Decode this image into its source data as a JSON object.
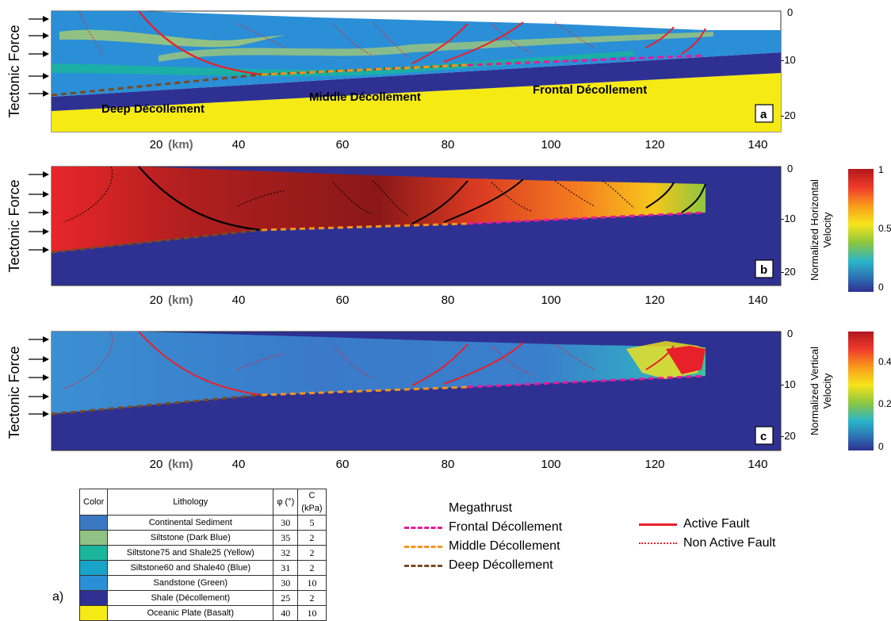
{
  "panels": [
    {
      "id": "a",
      "label": "a",
      "side_label": "Tectonic Force",
      "decollement_labels": [
        "Deep Décollement",
        "Middle Décollement",
        "Frontal Décollement"
      ]
    },
    {
      "id": "b",
      "label": "b",
      "side_label": "Tectonic Force",
      "colorbar_title": "Normalized Horizontal Velocity",
      "colorbar_ticks": [
        "1",
        "0.5",
        "0"
      ]
    },
    {
      "id": "c",
      "label": "c",
      "side_label": "Tectonic Force",
      "colorbar_title": "Normalized Vertical Velocity",
      "colorbar_ticks": [
        "0.4",
        "0.2",
        "0"
      ]
    }
  ],
  "x_axis": {
    "ticks": [
      "20",
      "40",
      "60",
      "80",
      "100",
      "120",
      "140"
    ],
    "unit": "(km)"
  },
  "y_axis": {
    "ticks": [
      "0",
      "-10",
      "-20"
    ]
  },
  "table": {
    "headers": [
      "Color",
      "Lithology",
      "φ (°)",
      "C (kPa)"
    ],
    "rows": [
      {
        "color": "#3a78c2",
        "name": "Continental Sediment",
        "phi": "30",
        "c": "5"
      },
      {
        "color": "#92c184",
        "name": "Siltstone (Dark Blue)",
        "phi": "35",
        "c": "2"
      },
      {
        "color": "#19b59d",
        "name": "Siltstone75 and Shale25 (Yellow)",
        "phi": "32",
        "c": "2"
      },
      {
        "color": "#1aa3c8",
        "name": "Siltstone60 and Shale40 (Blue)",
        "phi": "31",
        "c": "2"
      },
      {
        "color": "#2a8fd6",
        "name": "Sandstone (Green)",
        "phi": "30",
        "c": "10"
      },
      {
        "color": "#2e3192",
        "name": "Shale (Décollement)",
        "phi": "25",
        "c": "2"
      },
      {
        "color": "#f5ea14",
        "name": "Oceanic Plate (Basalt)",
        "phi": "40",
        "c": "10"
      }
    ],
    "panel_tag": "a)"
  },
  "legend": {
    "title": "Megathrust",
    "items": [
      {
        "label": "Frontal Décollement",
        "color": "#e6199b"
      },
      {
        "label": "Middle Décollement",
        "color": "#f7941d"
      },
      {
        "label": "Deep Décollement",
        "color": "#7a4a22"
      }
    ],
    "fault_items": [
      {
        "label": "Active Fault",
        "color": "#e8202a"
      },
      {
        "label": "Non Active Fault",
        "color": "#e8202a"
      }
    ]
  }
}
